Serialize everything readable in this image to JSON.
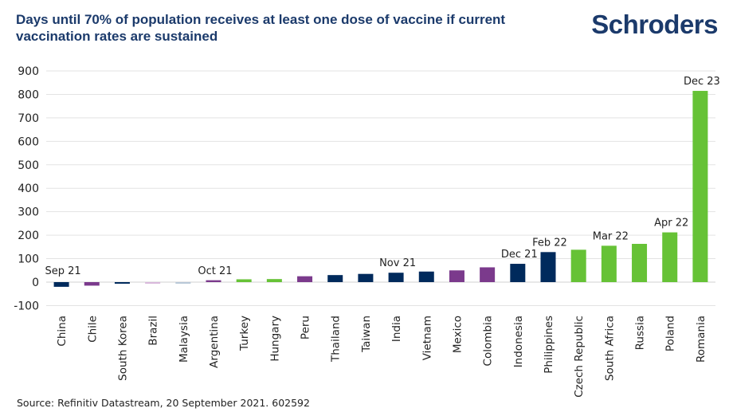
{
  "header": {
    "title": "Days until 70% of population receives at least one dose of vaccine if current vaccination rates are sustained",
    "logo": "Schroders"
  },
  "footer": {
    "source": "Source: Refinitiv Datastream, 20 September 2021. 602592"
  },
  "colors": {
    "navy": "#002a5c",
    "purple": "#7b3a8c",
    "light_purple": "#d9b8dc",
    "light_blue": "#b8c8d8",
    "green": "#66c236",
    "grid": "#e3e3e3",
    "title": "#1b3a6b"
  },
  "chart_data": {
    "type": "bar",
    "title": "Days until 70% of population receives at least one dose of vaccine if current vaccination rates are sustained",
    "xlabel": "",
    "ylabel": "",
    "ylim": [
      -100,
      900
    ],
    "yticks": [
      -100,
      0,
      100,
      200,
      300,
      400,
      500,
      600,
      700,
      800,
      900
    ],
    "grid": true,
    "legend": "none",
    "categories": [
      "China",
      "Chile",
      "South Korea",
      "Brazil",
      "Malaysia",
      "Argentina",
      "Turkey",
      "Hungary",
      "Peru",
      "Thailand",
      "Taiwan",
      "India",
      "Vietnam",
      "Mexico",
      "Colombia",
      "Indonesia",
      "Philippines",
      "Czech Republic",
      "South Africa",
      "Russia",
      "Poland",
      "Romania"
    ],
    "values": [
      -20,
      -15,
      -3,
      -2,
      -3,
      8,
      12,
      13,
      25,
      30,
      35,
      40,
      45,
      50,
      63,
      78,
      128,
      138,
      155,
      163,
      212,
      815
    ],
    "bar_colors": [
      "navy",
      "purple",
      "navy",
      "light_purple",
      "light_blue",
      "purple",
      "green",
      "green",
      "purple",
      "navy",
      "navy",
      "navy",
      "navy",
      "purple",
      "purple",
      "navy",
      "navy",
      "green",
      "green",
      "green",
      "green",
      "green"
    ],
    "annotations": [
      {
        "category": "China",
        "text": "Sep 21"
      },
      {
        "category": "Argentina",
        "text": "Oct 21"
      },
      {
        "category": "India",
        "text": "Nov 21"
      },
      {
        "category": "Indonesia",
        "text": "Dec 21"
      },
      {
        "category": "Philippines",
        "text": "Feb 22"
      },
      {
        "category": "South Africa",
        "text": "Mar 22"
      },
      {
        "category": "Poland",
        "text": "Apr 22"
      },
      {
        "category": "Romania",
        "text": "Dec 23"
      }
    ]
  }
}
